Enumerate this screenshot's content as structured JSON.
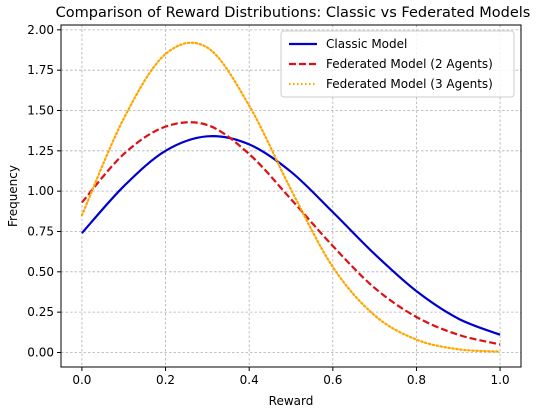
{
  "chart_data": {
    "type": "line",
    "title": "Comparison of Reward Distributions: Classic vs Federated Models",
    "xlabel": "Reward",
    "ylabel": "Frequency",
    "xlim": [
      -0.05,
      1.05
    ],
    "ylim": [
      -0.09,
      2.03
    ],
    "xticks": [
      0.0,
      0.2,
      0.4,
      0.6,
      0.8,
      1.0
    ],
    "xtick_labels": [
      "0.0",
      "0.2",
      "0.4",
      "0.6",
      "0.8",
      "1.0"
    ],
    "yticks": [
      0.0,
      0.25,
      0.5,
      0.75,
      1.0,
      1.25,
      1.5,
      1.75,
      2.0
    ],
    "ytick_labels": [
      "0.00",
      "0.25",
      "0.50",
      "0.75",
      "1.00",
      "1.25",
      "1.50",
      "1.75",
      "2.00"
    ],
    "grid": true,
    "legend_position": "top-right",
    "x": [
      0.0,
      0.1,
      0.2,
      0.3,
      0.4,
      0.5,
      0.6,
      0.7,
      0.8,
      0.9,
      1.0
    ],
    "series": [
      {
        "name": "Classic Model",
        "color": "#0000cc",
        "style": "solid",
        "values": [
          0.74,
          1.03,
          1.25,
          1.34,
          1.29,
          1.12,
          0.87,
          0.61,
          0.38,
          0.21,
          0.11
        ]
      },
      {
        "name": "Federated Model (2 Agents)",
        "color": "#dd1111",
        "style": "dashed",
        "values": [
          0.93,
          1.23,
          1.4,
          1.41,
          1.23,
          0.95,
          0.66,
          0.4,
          0.22,
          0.11,
          0.05
        ]
      },
      {
        "name": "Federated Model (3 Agents)",
        "color": "#ffa500",
        "style": "dotted",
        "values": [
          0.85,
          1.45,
          1.85,
          1.89,
          1.53,
          1.01,
          0.53,
          0.23,
          0.08,
          0.02,
          0.005
        ]
      }
    ]
  }
}
